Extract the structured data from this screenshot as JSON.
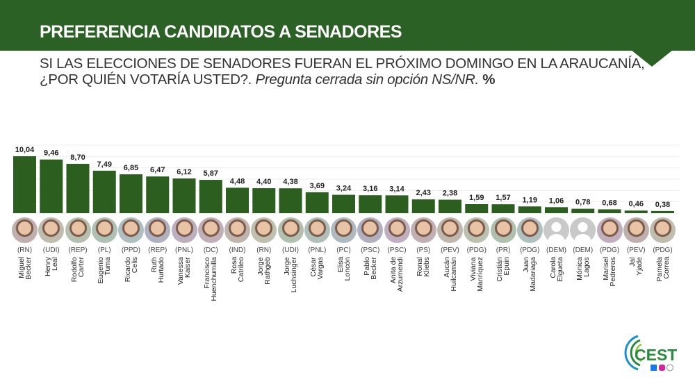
{
  "header": {
    "title": "PREFERENCIA CANDIDATOS A SENADORES",
    "question": "SI LAS ELECCIONES DE SENADORES FUERAN EL PRÓXIMO DOMINGO EN LA ARAUCANÍA,",
    "question2": "¿POR QUIÉN VOTARÍA USTED?.",
    "note": "Pregunta cerrada sin opción NS/NR.",
    "unit": "%"
  },
  "colors": {
    "brand": "#2b6124",
    "bar": "#2b5e1f",
    "logo_blue": "#1a8fd0",
    "logo_green": "#2a8a3e"
  },
  "logo": {
    "text": "CEST",
    "social_icons": [
      "facebook-icon",
      "instagram-icon",
      "whatsapp-icon"
    ]
  },
  "chart_data": {
    "type": "bar",
    "title": "",
    "xlabel": "",
    "ylabel": "",
    "ylim": [
      0,
      12
    ],
    "grid": true,
    "categories": [
      "Miguel Becker",
      "Henry Leal",
      "Rodolfo Carter",
      "Eugenio Tuma",
      "Ricardo Celis",
      "Ruth Hurtado",
      "Vanessa Kaiser",
      "Francisco Huenchumilla",
      "Rosa Catrileo",
      "Jorge Rathgeb",
      "Jorge Luchsinger",
      "César Vargas",
      "Elisa Loncón",
      "Pablo Becker",
      "Anita de Arzumendi",
      "Ronal Kliebs",
      "Aucán Huilcamán",
      "Viviana Manríquez",
      "Cristián Epuin",
      "Juan Madariaga",
      "Carola Elgueta",
      "Mónica Lagos",
      "Marisel Pedreros",
      "Jal Yjade",
      "Pamela Correa"
    ],
    "name_lines": [
      [
        "Miguel",
        "Becker"
      ],
      [
        "Henry",
        "Leal"
      ],
      [
        "Rodolfo",
        "Carter"
      ],
      [
        "Eugenio",
        "Tuma"
      ],
      [
        "Ricardo",
        "Celis"
      ],
      [
        "Ruth",
        "Hurtado"
      ],
      [
        "Vanessa",
        "Kaiser"
      ],
      [
        "Francisco",
        "Huenchumilla"
      ],
      [
        "Rosa",
        "Catrileo"
      ],
      [
        "Jorge",
        "Rathgeb"
      ],
      [
        "Jorge",
        "Luchsinger"
      ],
      [
        "César",
        "Vargas"
      ],
      [
        "Elisa",
        "Loncón"
      ],
      [
        "Pablo",
        "Becker"
      ],
      [
        "Anita de",
        "Arzumendi"
      ],
      [
        "Ronal",
        "Kliebs"
      ],
      [
        "Aucán",
        "Huilcamán"
      ],
      [
        "Viviana",
        "Manríquez"
      ],
      [
        "Cristián",
        "Epuin"
      ],
      [
        "Juan",
        "Madariaga"
      ],
      [
        "Carola",
        "Elgueta"
      ],
      [
        "Mónica",
        "Lagos"
      ],
      [
        "Marisel",
        "Pedreros"
      ],
      [
        "Jal",
        "Yjade"
      ],
      [
        "Pamela",
        "Correa"
      ]
    ],
    "parties": [
      "(RN)",
      "(UDI)",
      "(REP)",
      "(PL)",
      "(PPD)",
      "(REP)",
      "(PNL)",
      "(DC)",
      "(IND)",
      "(RN)",
      "(UDI)",
      "(PNL)",
      "(PC)",
      "(PSC)",
      "(PSC)",
      "(PS)",
      "(PEV)",
      "(PDG)",
      "(PR)",
      "(PDG)",
      "(DEM)",
      "(DEM)",
      "(PDG)",
      "(PEV)",
      "(PDG)"
    ],
    "values": [
      10.04,
      9.46,
      8.7,
      7.49,
      6.85,
      6.47,
      6.12,
      5.87,
      4.48,
      4.4,
      4.38,
      3.69,
      3.24,
      3.16,
      3.14,
      2.43,
      2.38,
      1.59,
      1.57,
      1.19,
      1.06,
      0.78,
      0.68,
      0.46,
      0.38
    ],
    "labels": [
      "10,04",
      "9,46",
      "8,70",
      "7,49",
      "6,85",
      "6,47",
      "6,12",
      "5,87",
      "4,48",
      "4,40",
      "4,38",
      "3,69",
      "3,24",
      "3,16",
      "3,14",
      "2,43",
      "2,38",
      "1,59",
      "1,57",
      "1,19",
      "1,06",
      "0,78",
      "0,68",
      "0,46",
      "0,38"
    ],
    "placeholder_photo": [
      false,
      false,
      false,
      false,
      false,
      false,
      false,
      false,
      false,
      false,
      false,
      false,
      false,
      false,
      false,
      false,
      false,
      false,
      false,
      false,
      true,
      true,
      false,
      false,
      false
    ]
  }
}
